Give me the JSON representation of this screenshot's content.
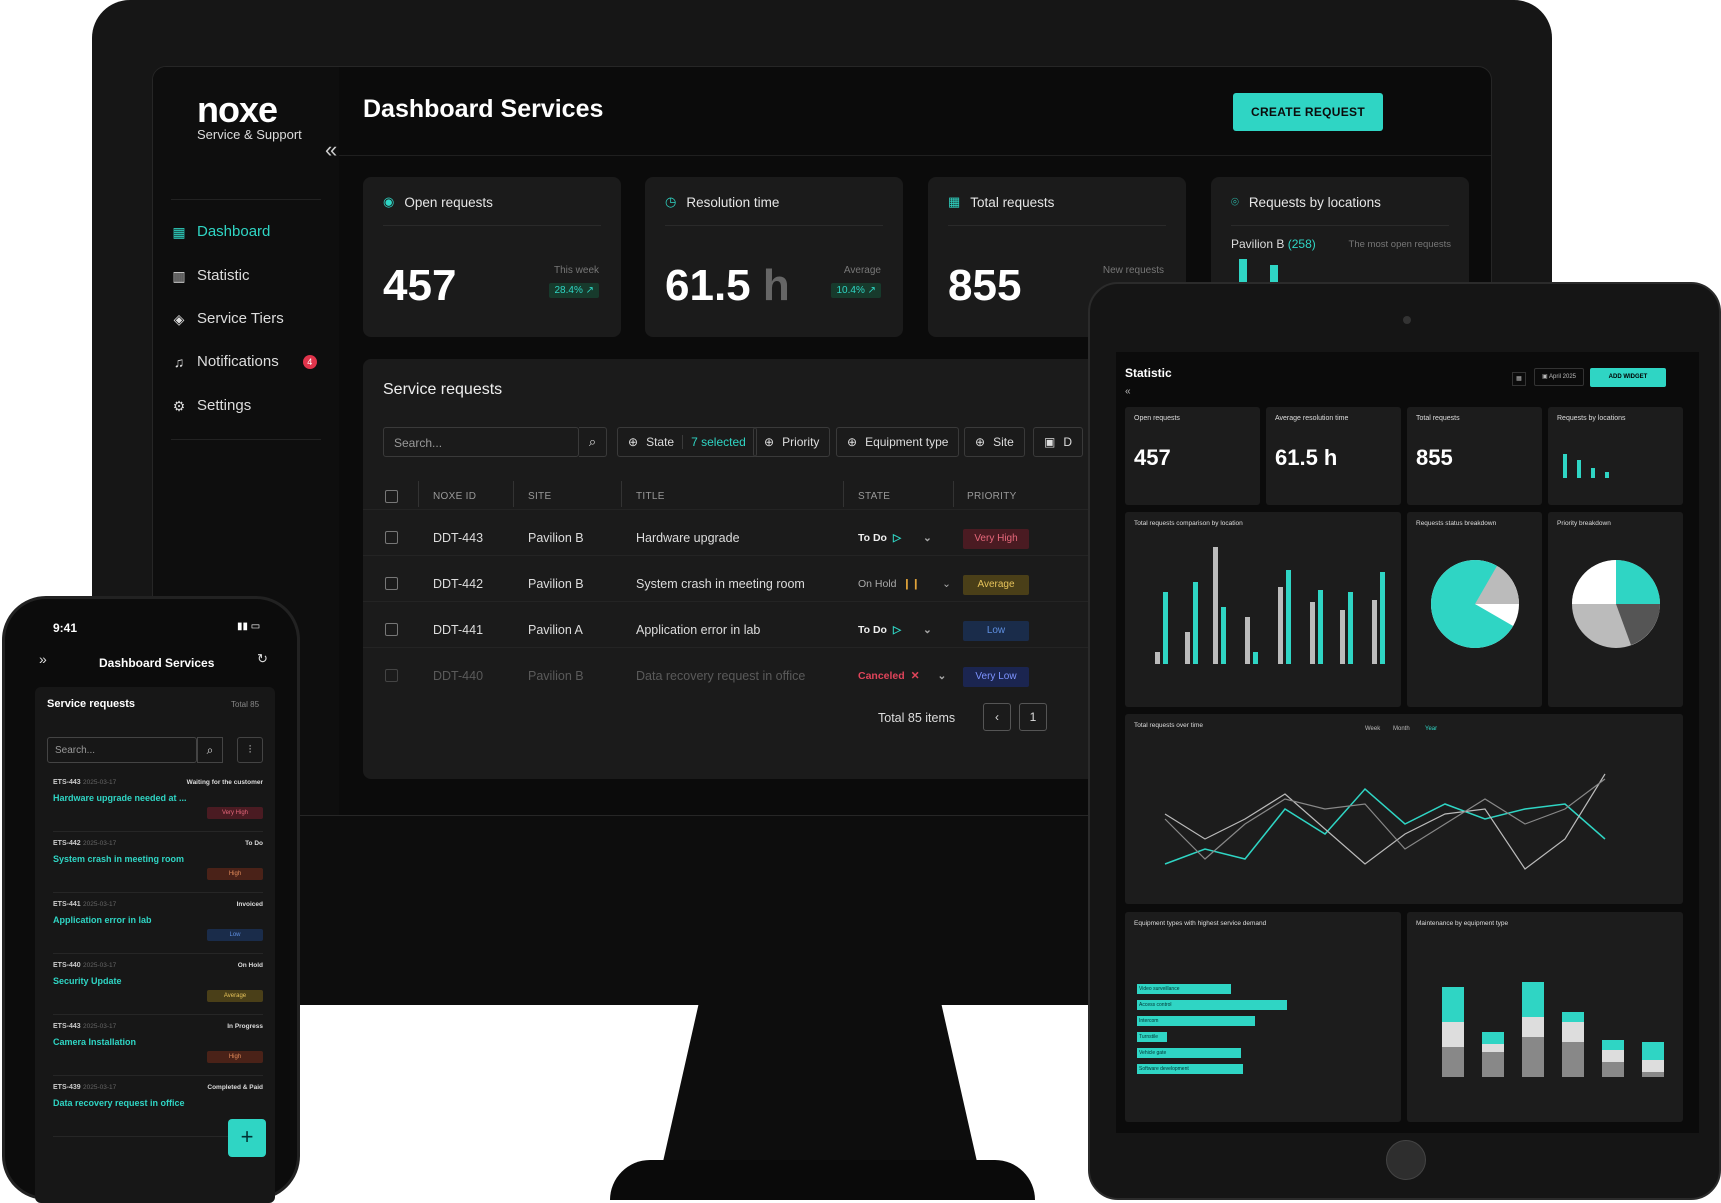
{
  "app": {
    "logo": "noxe",
    "logo_subtitle": "Service & Support"
  },
  "sidebar": {
    "items": [
      {
        "label": "Dashboard",
        "icon": "grid-icon",
        "active": true
      },
      {
        "label": "Statistic",
        "icon": "bar-chart-icon"
      },
      {
        "label": "Service Tiers",
        "icon": "layers-icon"
      },
      {
        "label": "Notifications",
        "icon": "bell-icon",
        "badge": "4"
      },
      {
        "label": "Settings",
        "icon": "gear-icon"
      }
    ]
  },
  "header": {
    "title": "Dashboard Services",
    "cta": "CREATE REQUEST"
  },
  "kpis": [
    {
      "label": "Open requests",
      "value": "457",
      "unit": "",
      "caption": "This week",
      "delta": "28.4% ↗"
    },
    {
      "label": "Resolution time",
      "value": "61.5",
      "unit": "h",
      "caption": "Average",
      "delta": "10.4% ↗"
    },
    {
      "label": "Total requests",
      "value": "855",
      "unit": "",
      "caption": "New requests",
      "delta": ""
    },
    {
      "label": "Requests by locations",
      "location": "Pavilion B",
      "count": "(258)",
      "caption": "The most open requests"
    }
  ],
  "requests": {
    "title": "Service requests",
    "search_placeholder": "Search...",
    "filters": {
      "state": "State",
      "state_selected": "7 selected",
      "priority": "Priority",
      "equipment": "Equipment type",
      "site": "Site",
      "date": "D"
    },
    "columns": [
      "NOXE ID",
      "SITE",
      "TITLE",
      "STATE",
      "PRIORITY"
    ],
    "rows": [
      {
        "id": "DDT-443",
        "site": "Pavilion B",
        "title": "Hardware upgrade",
        "state": "To Do",
        "priority": "Very High"
      },
      {
        "id": "DDT-442",
        "site": "Pavilion B",
        "title": "System crash in meeting room",
        "state": "On Hold",
        "priority": "Average"
      },
      {
        "id": "DDT-441",
        "site": "Pavilion A",
        "title": "Application error in lab",
        "state": "To Do",
        "priority": "Low"
      },
      {
        "id": "DDT-440",
        "site": "Pavilion B",
        "title": "Data recovery request in office",
        "state": "Canceled",
        "priority": "Very Low"
      }
    ],
    "total": "Total 85 items",
    "page": "1"
  },
  "tablet": {
    "title": "Statistic",
    "date": "April 2025",
    "add_widget": "ADD WIDGET",
    "cards": [
      {
        "label": "Open requests",
        "value": "457"
      },
      {
        "label": "Average resolution time",
        "value": "61.5 h"
      },
      {
        "label": "Total requests",
        "value": "855"
      },
      {
        "label": "Requests by locations"
      }
    ],
    "panels": {
      "comparison": "Total requests comparison by location",
      "status": "Requests status breakdown",
      "priority": "Priority breakdown",
      "over_time": "Total requests over time",
      "range_tabs": [
        "Week",
        "Month",
        "Year"
      ],
      "equipment": "Equipment types with highest service demand",
      "maintenance": "Maintenance by equipment type"
    },
    "equipment_bars": [
      {
        "label": "Video surveillance",
        "value": 54
      },
      {
        "label": "Access control",
        "value": 75
      },
      {
        "label": "Intercom",
        "value": 67
      },
      {
        "label": "Turnstile",
        "value": 11
      },
      {
        "label": "Vehicle gate",
        "value": 61
      },
      {
        "label": "Software development",
        "value": 62
      }
    ]
  },
  "phone": {
    "time": "9:41",
    "title": "Dashboard Services",
    "list_title": "Service requests",
    "total": "Total 85",
    "search_placeholder": "Search...",
    "items": [
      {
        "id": "ETS-443",
        "date": "2025-03-17",
        "status": "Waiting for the customer",
        "title": "Hardware upgrade needed at ...",
        "priority": "Very High"
      },
      {
        "id": "ETS-442",
        "date": "2025-03-17",
        "status": "To Do",
        "title": "System crash in meeting room",
        "priority": "High"
      },
      {
        "id": "ETS-441",
        "date": "2025-03-17",
        "status": "Invoiced",
        "title": "Application error in lab",
        "priority": "Low"
      },
      {
        "id": "ETS-440",
        "date": "2025-03-17",
        "status": "On Hold",
        "title": "Security Update",
        "priority": "Average"
      },
      {
        "id": "ETS-443",
        "date": "2025-03-17",
        "status": "In Progress",
        "title": "Camera Installation",
        "priority": "High"
      },
      {
        "id": "ETS-439",
        "date": "2025-03-17",
        "status": "Completed & Paid",
        "title": "Data recovery request in office",
        "priority": ""
      }
    ]
  },
  "colors": {
    "accent": "#2fd5c4",
    "bg": "#0b0b0b",
    "card": "#1b1b1b"
  }
}
